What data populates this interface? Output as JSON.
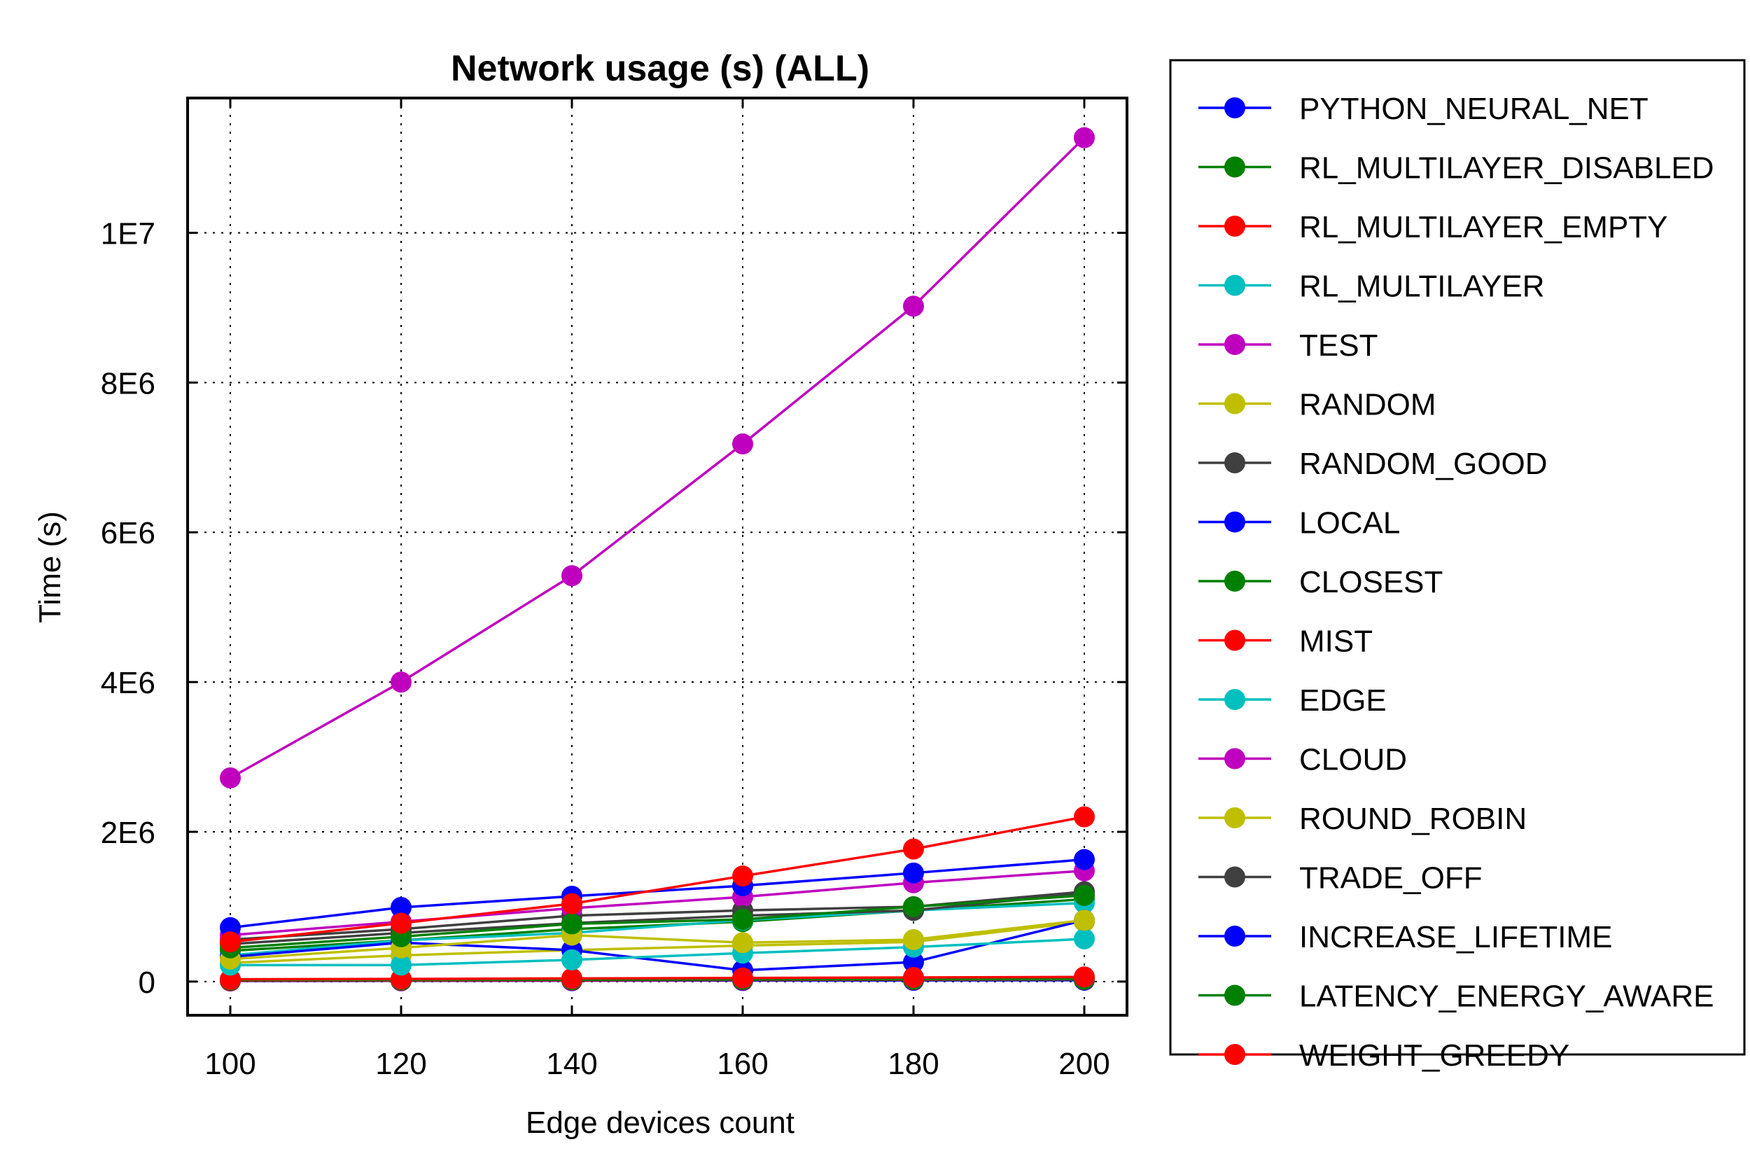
{
  "chart_data": {
    "type": "line",
    "title": "Network usage (s) (ALL)",
    "xlabel": "Edge devices count",
    "ylabel": "Time (s)",
    "x": [
      100,
      120,
      140,
      160,
      180,
      200
    ],
    "x_tick_labels": [
      "100",
      "120",
      "140",
      "160",
      "180",
      "200"
    ],
    "xlim": [
      95,
      205
    ],
    "ylim": [
      -450000,
      11800000
    ],
    "y_ticks": [
      0,
      2000000,
      4000000,
      6000000,
      8000000,
      10000000
    ],
    "y_tick_labels": [
      "0",
      "2E6",
      "4E6",
      "6E6",
      "8E6",
      "1E7"
    ],
    "grid": true,
    "legend_position": "right, outside plot",
    "series": [
      {
        "name": "PYTHON_NEURAL_NET",
        "color": "#0000ff",
        "values": [
          8000,
          10000,
          12000,
          14000,
          16000,
          18000
        ]
      },
      {
        "name": "RL_MULTILAYER_DISABLED",
        "color": "#008000",
        "values": [
          410000,
          550000,
          700000,
          800000,
          950000,
          1100000
        ]
      },
      {
        "name": "RL_MULTILAYER_EMPTY",
        "color": "#ff0000",
        "values": [
          12000,
          15000,
          18000,
          22000,
          25000,
          28000
        ]
      },
      {
        "name": "RL_MULTILAYER",
        "color": "#00bfbf",
        "values": [
          350000,
          550000,
          650000,
          820000,
          950000,
          1050000
        ]
      },
      {
        "name": "TEST",
        "color": "#bf00bf",
        "values": [
          2720000,
          4000000,
          5420000,
          7180000,
          9020000,
          11270000
        ]
      },
      {
        "name": "RANDOM",
        "color": "#bfbf00",
        "values": [
          250000,
          350000,
          420000,
          480000,
          530000,
          800000
        ]
      },
      {
        "name": "RANDOM_GOOD",
        "color": "#404040",
        "values": [
          560000,
          700000,
          880000,
          950000,
          1000000,
          1200000
        ]
      },
      {
        "name": "LOCAL",
        "color": "#0000ff",
        "values": [
          330000,
          520000,
          420000,
          150000,
          260000,
          820000
        ]
      },
      {
        "name": "CLOSEST",
        "color": "#008000",
        "values": [
          20000,
          22000,
          25000,
          28000,
          30000,
          32000
        ]
      },
      {
        "name": "MIST",
        "color": "#ff0000",
        "values": [
          30000,
          35000,
          42000,
          48000,
          55000,
          62000
        ]
      },
      {
        "name": "EDGE",
        "color": "#00bfbf",
        "values": [
          220000,
          220000,
          290000,
          380000,
          460000,
          570000
        ]
      },
      {
        "name": "CLOUD",
        "color": "#bf00bf",
        "values": [
          620000,
          800000,
          980000,
          1130000,
          1320000,
          1480000
        ]
      },
      {
        "name": "ROUND_ROBIN",
        "color": "#bfbf00",
        "values": [
          300000,
          450000,
          620000,
          520000,
          560000,
          820000
        ]
      },
      {
        "name": "TRADE_OFF",
        "color": "#404040",
        "values": [
          500000,
          650000,
          780000,
          880000,
          950000,
          1180000
        ]
      },
      {
        "name": "INCREASE_LIFETIME",
        "color": "#0000ff",
        "values": [
          720000,
          990000,
          1140000,
          1280000,
          1450000,
          1630000
        ]
      },
      {
        "name": "LATENCY_ENERGY_AWARE",
        "color": "#008000",
        "values": [
          450000,
          600000,
          770000,
          830000,
          1000000,
          1150000
        ]
      },
      {
        "name": "WEIGHT_GREEDY",
        "color": "#ff0000",
        "values": [
          530000,
          780000,
          1040000,
          1410000,
          1770000,
          2200000
        ]
      }
    ]
  }
}
